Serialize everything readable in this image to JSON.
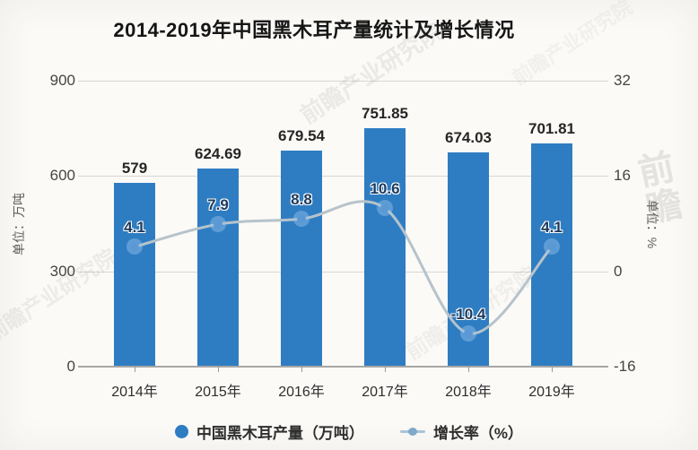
{
  "title": "2014-2019年中国黑木耳产量统计及增长情况",
  "chart_data": {
    "type": "bar",
    "title": "2014-2019年中国黑木耳产量统计及增长情况",
    "categories": [
      "2014年",
      "2015年",
      "2016年",
      "2017年",
      "2018年",
      "2019年"
    ],
    "series": [
      {
        "name": "中国黑木耳产量（万吨）",
        "type": "bar",
        "axis": "left",
        "values": [
          579,
          624.69,
          679.54,
          751.85,
          674.03,
          701.81
        ],
        "labels": [
          "579",
          "624.69",
          "679.54",
          "751.85",
          "674.03",
          "701.81"
        ],
        "color": "#2e7dc3"
      },
      {
        "name": "增长率（%）",
        "type": "line",
        "axis": "right",
        "values": [
          4.1,
          7.9,
          8.8,
          10.6,
          -10.4,
          4.1
        ],
        "labels": [
          "4.1",
          "7.9",
          "8.8",
          "10.6",
          "-10.4",
          "4.1"
        ],
        "color": "#b7c3cb",
        "marker_color": "#5a99d4"
      }
    ],
    "left_axis": {
      "title": "单位：万吨",
      "ticks": [
        "900",
        "600",
        "300",
        "0"
      ],
      "min": 0,
      "max": 900
    },
    "right_axis": {
      "title": "单位：%",
      "ticks": [
        "32",
        "16",
        "0",
        "-16"
      ],
      "min": -16,
      "max": 32
    },
    "grid": true,
    "legend_position": "bottom"
  },
  "legend": {
    "items": [
      {
        "label": "中国黑木耳产量（万吨）",
        "swatch": "blue-circle"
      },
      {
        "label": "增长率（%）",
        "swatch": "line-with-dot"
      }
    ]
  },
  "watermarks": [
    "前瞻产业研究院",
    "前瞻产业研究院",
    "前瞻产业研究院",
    "前瞻",
    "前瞻产业研究院"
  ],
  "colors": {
    "bar": "#2e7dc3",
    "line": "#b7c3cb",
    "marker": "#5a99d4",
    "line_label": "#1d3a5f",
    "gridline": "#d7d6d2",
    "baseline": "#a6a6a4",
    "background": "#fbfaf7"
  }
}
